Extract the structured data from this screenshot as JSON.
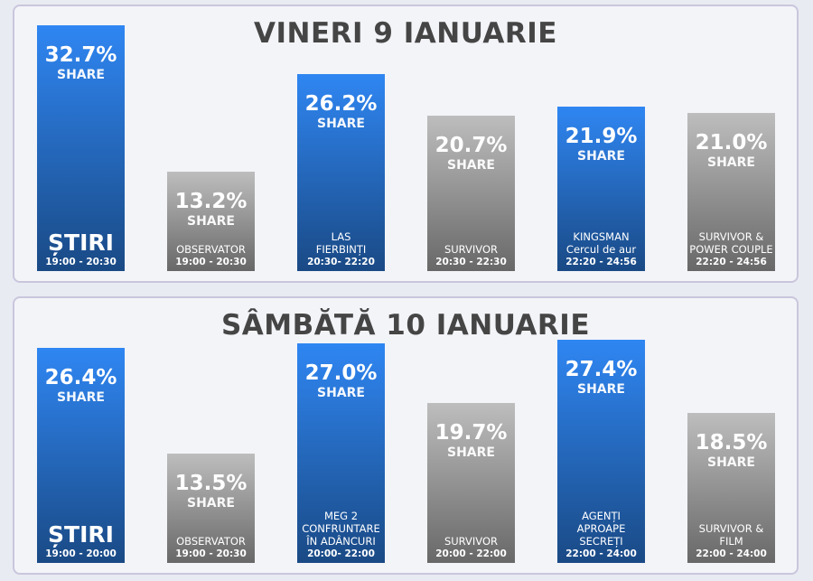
{
  "chart_data": [
    {
      "type": "bar",
      "title": "VINERI 9 IANUARIE",
      "categories": [
        "ȘTIRI",
        "OBSERVATOR",
        "LAS\nFIERBINȚI",
        "SURVIVOR",
        "KINGSMAN\nCercul de aur",
        "SURVIVOR &\nPOWER COUPLE"
      ],
      "times": [
        "19:00 - 20:30",
        "19:00 - 20:30",
        "20:30- 22:20",
        "20:30 - 22:30",
        "22:20 - 24:56",
        "22:20 - 24:56"
      ],
      "values": [
        32.7,
        13.2,
        26.2,
        20.7,
        21.9,
        21.0
      ],
      "value_labels": [
        "32.7%",
        "13.2%",
        "26.2%",
        "20.7%",
        "21.9%",
        "21.0%"
      ],
      "value_caption": "SHARE",
      "colors": [
        "#2f86f2",
        "#bdbdbd",
        "#2f86f2",
        "#bdbdbd",
        "#2f86f2",
        "#bdbdbd"
      ],
      "ylim": [
        0,
        33
      ]
    },
    {
      "type": "bar",
      "title": "SÂMBĂTĂ 10 IANUARIE",
      "categories": [
        "ȘTIRI",
        "OBSERVATOR",
        "MEG 2\nCONFRUNTARE\nÎN ADÂNCURI",
        "SURVIVOR",
        "AGENȚI\nAPROAPE\nSECREȚI",
        "SURVIVOR &\nFILM"
      ],
      "times": [
        "19:00 - 20:00",
        "19:00 - 20:30",
        "20:00- 22:00",
        "20:00 - 22:00",
        "22:00 - 24:00",
        "22:00 - 24:00"
      ],
      "values": [
        26.4,
        13.5,
        27.0,
        19.7,
        27.4,
        18.5
      ],
      "value_labels": [
        "26.4%",
        "13.5%",
        "27.0%",
        "19.7%",
        "27.4%",
        "18.5%"
      ],
      "value_caption": "SHARE",
      "colors": [
        "#2f86f2",
        "#bdbdbd",
        "#2f86f2",
        "#bdbdbd",
        "#2f86f2",
        "#bdbdbd"
      ],
      "ylim": [
        0,
        33
      ]
    }
  ]
}
